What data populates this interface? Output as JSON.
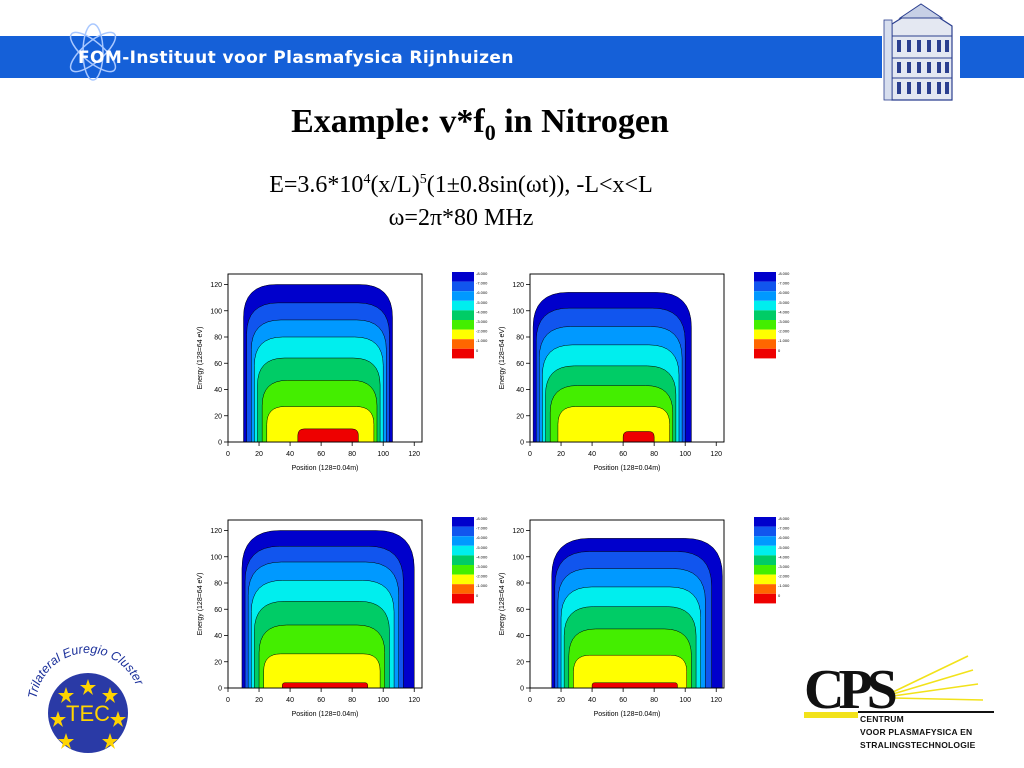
{
  "header": {
    "institute_prefix": "FOM",
    "institute_name": "-Instituut voor Plasmafysica Rijnhuizen"
  },
  "slide": {
    "title_main": "Example: v*f",
    "title_sub": "0",
    "title_rest": " in Nitrogen",
    "formula_line1": {
      "a": "E=3.6*10",
      "exp1": "4",
      "b": "(x/L)",
      "exp2": "5",
      "c": "(1±0.8sin(ωt)), -L<x<L"
    },
    "formula_line2": "ω=2π*80 MHz"
  },
  "colors": {
    "banner": "#1560d8",
    "levels": [
      "#ee0000",
      "#ff6600",
      "#ffaa00",
      "#ffff00",
      "#44ee00",
      "#00cc66",
      "#00eeee",
      "#0099ff",
      "#1155ee",
      "#0000cc"
    ]
  },
  "chart_data": [
    {
      "type": "heatmap",
      "panel": "top-left",
      "xlabel": "Position (128=0.04m)",
      "ylabel": "Energy (128=64 eV)",
      "xticks": [
        0,
        20,
        40,
        60,
        80,
        100,
        120
      ],
      "yticks": [
        0,
        20,
        40,
        60,
        80,
        100,
        120
      ],
      "xlim": [
        0,
        125
      ],
      "ylim": [
        0,
        128
      ],
      "colorbar_labels": [
        "-8.000",
        "-7.000",
        "-6.000",
        "-5.000",
        "-4.000",
        "-3.000",
        "-2.000",
        "-1.000",
        "0"
      ],
      "contour_bounds": [
        {
          "x0": 10,
          "x1": 106,
          "top": 120
        },
        {
          "x0": 12,
          "x1": 104,
          "top": 106
        },
        {
          "x0": 15,
          "x1": 102,
          "top": 93
        },
        {
          "x0": 17,
          "x1": 100,
          "top": 80
        },
        {
          "x0": 19,
          "x1": 98,
          "top": 64
        },
        {
          "x0": 22,
          "x1": 96,
          "top": 47
        },
        {
          "x0": 25,
          "x1": 94,
          "top": 27
        },
        {
          "x0": 45,
          "x1": 84,
          "top": 10
        }
      ]
    },
    {
      "type": "heatmap",
      "panel": "top-right",
      "xlabel": "Position (128=0.04m)",
      "ylabel": "Energy (128=64 eV)",
      "xticks": [
        0,
        20,
        40,
        60,
        80,
        100,
        120
      ],
      "yticks": [
        0,
        20,
        40,
        60,
        80,
        100,
        120
      ],
      "xlim": [
        0,
        125
      ],
      "ylim": [
        0,
        128
      ],
      "colorbar_labels": [
        "-8.000",
        "-7.000",
        "-6.000",
        "-5.000",
        "-4.000",
        "-3.000",
        "-2.000",
        "-1.000",
        "0"
      ],
      "contour_bounds": [
        {
          "x0": 2,
          "x1": 104,
          "top": 114
        },
        {
          "x0": 4,
          "x1": 100,
          "top": 102
        },
        {
          "x0": 6,
          "x1": 98,
          "top": 88
        },
        {
          "x0": 8,
          "x1": 96,
          "top": 74
        },
        {
          "x0": 10,
          "x1": 94,
          "top": 58
        },
        {
          "x0": 13,
          "x1": 92,
          "top": 43
        },
        {
          "x0": 18,
          "x1": 90,
          "top": 27
        },
        {
          "x0": 60,
          "x1": 80,
          "top": 8
        }
      ]
    },
    {
      "type": "heatmap",
      "panel": "bottom-left",
      "xlabel": "Position (128=0.04m)",
      "ylabel": "Energy (128=64 eV)",
      "xticks": [
        0,
        20,
        40,
        60,
        80,
        100,
        120
      ],
      "yticks": [
        0,
        20,
        40,
        60,
        80,
        100,
        120
      ],
      "xlim": [
        0,
        125
      ],
      "ylim": [
        0,
        128
      ],
      "colorbar_labels": [
        "-8.000",
        "-7.000",
        "-6.000",
        "-5.000",
        "-4.000",
        "-3.000",
        "-2.000",
        "-1.000",
        "0"
      ],
      "contour_bounds": [
        {
          "x0": 9,
          "x1": 120,
          "top": 120
        },
        {
          "x0": 11,
          "x1": 113,
          "top": 108
        },
        {
          "x0": 13,
          "x1": 110,
          "top": 96
        },
        {
          "x0": 15,
          "x1": 107,
          "top": 82
        },
        {
          "x0": 17,
          "x1": 104,
          "top": 66
        },
        {
          "x0": 20,
          "x1": 101,
          "top": 48
        },
        {
          "x0": 23,
          "x1": 98,
          "top": 26
        },
        {
          "x0": 35,
          "x1": 90,
          "top": 4
        }
      ]
    },
    {
      "type": "heatmap",
      "panel": "bottom-right",
      "xlabel": "Position (128=0.04m)",
      "ylabel": "Energy (128=64 eV)",
      "xticks": [
        0,
        20,
        40,
        60,
        80,
        100,
        120
      ],
      "yticks": [
        0,
        20,
        40,
        60,
        80,
        100,
        120
      ],
      "xlim": [
        0,
        125
      ],
      "ylim": [
        0,
        128
      ],
      "colorbar_labels": [
        "-8.000",
        "-7.000",
        "-6.000",
        "-5.000",
        "-4.000",
        "-3.000",
        "-2.000",
        "-1.000",
        "0"
      ],
      "contour_bounds": [
        {
          "x0": 14,
          "x1": 124,
          "top": 114
        },
        {
          "x0": 16,
          "x1": 117,
          "top": 104
        },
        {
          "x0": 18,
          "x1": 113,
          "top": 91
        },
        {
          "x0": 20,
          "x1": 110,
          "top": 77
        },
        {
          "x0": 22,
          "x1": 107,
          "top": 62
        },
        {
          "x0": 25,
          "x1": 104,
          "top": 45
        },
        {
          "x0": 28,
          "x1": 101,
          "top": 25
        },
        {
          "x0": 40,
          "x1": 95,
          "top": 4
        }
      ]
    }
  ],
  "logos": {
    "tec_arc_text": "Trilateral Euregio Cluster",
    "tec_center_text": "TEC",
    "cps_letters": "CPS",
    "cps_line1": "CENTRUM",
    "cps_line2": "VOOR PLASMAFYSICA  EN",
    "cps_line3": "STRALINGSTECHNOLOGIE"
  }
}
